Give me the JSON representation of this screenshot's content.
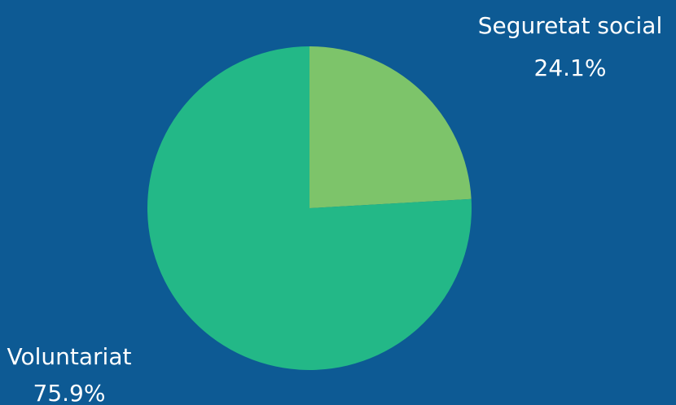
{
  "chart_data": {
    "type": "pie",
    "categories": [
      "Seguretat social",
      "Voluntariat"
    ],
    "values": [
      24.1,
      75.9
    ],
    "value_labels": [
      "24.1%",
      "75.9%"
    ],
    "colors": [
      "#7dc46a",
      "#23b887"
    ]
  }
}
